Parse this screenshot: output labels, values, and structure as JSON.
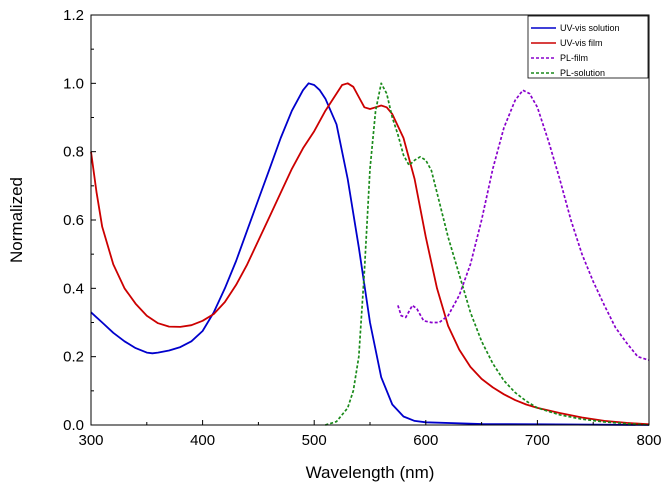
{
  "chart_data": {
    "type": "line",
    "title": "",
    "xlabel": "Wavelength (nm)",
    "ylabel": "Normalized",
    "xlim": [
      300,
      800
    ],
    "ylim": [
      0.0,
      1.2
    ],
    "xticks": [
      300,
      400,
      500,
      600,
      700,
      800
    ],
    "xtick_labels": [
      "300",
      "400",
      "500",
      "600",
      "700",
      "800"
    ],
    "yticks": [
      0.0,
      0.2,
      0.4,
      0.6,
      0.8,
      1.0,
      1.2
    ],
    "ytick_labels": [
      "0.0",
      "0.2",
      "0.4",
      "0.6",
      "0.8",
      "1.0",
      "1.2"
    ],
    "grid": false,
    "legend_position": "top-right",
    "series": [
      {
        "name": "UV-vis solution",
        "color": "#0000cc",
        "dash": "solid",
        "points": [
          [
            300,
            0.33
          ],
          [
            310,
            0.3
          ],
          [
            320,
            0.27
          ],
          [
            330,
            0.245
          ],
          [
            340,
            0.225
          ],
          [
            350,
            0.212
          ],
          [
            355,
            0.21
          ],
          [
            360,
            0.212
          ],
          [
            370,
            0.218
          ],
          [
            380,
            0.228
          ],
          [
            390,
            0.245
          ],
          [
            400,
            0.275
          ],
          [
            410,
            0.33
          ],
          [
            420,
            0.4
          ],
          [
            430,
            0.48
          ],
          [
            440,
            0.57
          ],
          [
            450,
            0.66
          ],
          [
            460,
            0.75
          ],
          [
            470,
            0.84
          ],
          [
            480,
            0.92
          ],
          [
            490,
            0.98
          ],
          [
            495,
            1.0
          ],
          [
            500,
            0.995
          ],
          [
            505,
            0.98
          ],
          [
            510,
            0.955
          ],
          [
            520,
            0.88
          ],
          [
            530,
            0.72
          ],
          [
            540,
            0.52
          ],
          [
            550,
            0.3
          ],
          [
            560,
            0.14
          ],
          [
            570,
            0.06
          ],
          [
            580,
            0.025
          ],
          [
            590,
            0.012
          ],
          [
            600,
            0.008
          ],
          [
            650,
            0.003
          ],
          [
            700,
            0.002
          ],
          [
            800,
            0.0
          ]
        ]
      },
      {
        "name": "UV-vis film",
        "color": "#cc0000",
        "dash": "solid",
        "points": [
          [
            300,
            0.8
          ],
          [
            305,
            0.68
          ],
          [
            310,
            0.58
          ],
          [
            320,
            0.47
          ],
          [
            330,
            0.4
          ],
          [
            340,
            0.355
          ],
          [
            350,
            0.32
          ],
          [
            360,
            0.298
          ],
          [
            370,
            0.288
          ],
          [
            380,
            0.287
          ],
          [
            390,
            0.292
          ],
          [
            400,
            0.305
          ],
          [
            410,
            0.325
          ],
          [
            420,
            0.36
          ],
          [
            430,
            0.41
          ],
          [
            440,
            0.47
          ],
          [
            450,
            0.54
          ],
          [
            460,
            0.61
          ],
          [
            470,
            0.68
          ],
          [
            480,
            0.75
          ],
          [
            490,
            0.81
          ],
          [
            500,
            0.86
          ],
          [
            510,
            0.92
          ],
          [
            520,
            0.97
          ],
          [
            525,
            0.995
          ],
          [
            530,
            1.0
          ],
          [
            535,
            0.99
          ],
          [
            540,
            0.96
          ],
          [
            545,
            0.93
          ],
          [
            550,
            0.925
          ],
          [
            555,
            0.93
          ],
          [
            560,
            0.935
          ],
          [
            565,
            0.93
          ],
          [
            570,
            0.91
          ],
          [
            580,
            0.84
          ],
          [
            590,
            0.72
          ],
          [
            600,
            0.55
          ],
          [
            610,
            0.4
          ],
          [
            620,
            0.29
          ],
          [
            630,
            0.22
          ],
          [
            640,
            0.17
          ],
          [
            650,
            0.135
          ],
          [
            660,
            0.11
          ],
          [
            670,
            0.09
          ],
          [
            680,
            0.073
          ],
          [
            690,
            0.06
          ],
          [
            700,
            0.05
          ],
          [
            720,
            0.035
          ],
          [
            740,
            0.022
          ],
          [
            760,
            0.012
          ],
          [
            780,
            0.006
          ],
          [
            800,
            0.002
          ]
        ]
      },
      {
        "name": "PL-film",
        "color": "#8800cc",
        "dash": "dashed",
        "points": [
          [
            575,
            0.35
          ],
          [
            578,
            0.32
          ],
          [
            582,
            0.315
          ],
          [
            588,
            0.35
          ],
          [
            592,
            0.34
          ],
          [
            598,
            0.305
          ],
          [
            605,
            0.3
          ],
          [
            612,
            0.3
          ],
          [
            620,
            0.32
          ],
          [
            630,
            0.38
          ],
          [
            640,
            0.47
          ],
          [
            650,
            0.6
          ],
          [
            660,
            0.75
          ],
          [
            670,
            0.87
          ],
          [
            680,
            0.95
          ],
          [
            687,
            0.98
          ],
          [
            693,
            0.97
          ],
          [
            700,
            0.93
          ],
          [
            710,
            0.83
          ],
          [
            720,
            0.72
          ],
          [
            730,
            0.6
          ],
          [
            740,
            0.5
          ],
          [
            750,
            0.42
          ],
          [
            760,
            0.35
          ],
          [
            770,
            0.285
          ],
          [
            780,
            0.24
          ],
          [
            790,
            0.2
          ],
          [
            800,
            0.19
          ]
        ]
      },
      {
        "name": "PL-solution",
        "color": "#1a8a1a",
        "dash": "dashed",
        "points": [
          [
            510,
            0.0
          ],
          [
            520,
            0.01
          ],
          [
            530,
            0.05
          ],
          [
            535,
            0.1
          ],
          [
            540,
            0.2
          ],
          [
            545,
            0.45
          ],
          [
            550,
            0.75
          ],
          [
            555,
            0.92
          ],
          [
            560,
            1.0
          ],
          [
            565,
            0.97
          ],
          [
            570,
            0.9
          ],
          [
            575,
            0.85
          ],
          [
            580,
            0.79
          ],
          [
            585,
            0.76
          ],
          [
            590,
            0.775
          ],
          [
            595,
            0.785
          ],
          [
            600,
            0.775
          ],
          [
            605,
            0.745
          ],
          [
            610,
            0.68
          ],
          [
            620,
            0.55
          ],
          [
            630,
            0.44
          ],
          [
            640,
            0.33
          ],
          [
            650,
            0.245
          ],
          [
            660,
            0.18
          ],
          [
            670,
            0.13
          ],
          [
            680,
            0.095
          ],
          [
            690,
            0.07
          ],
          [
            700,
            0.05
          ],
          [
            720,
            0.03
          ],
          [
            740,
            0.017
          ],
          [
            760,
            0.009
          ],
          [
            780,
            0.004
          ],
          [
            800,
            0.0
          ]
        ]
      }
    ]
  }
}
